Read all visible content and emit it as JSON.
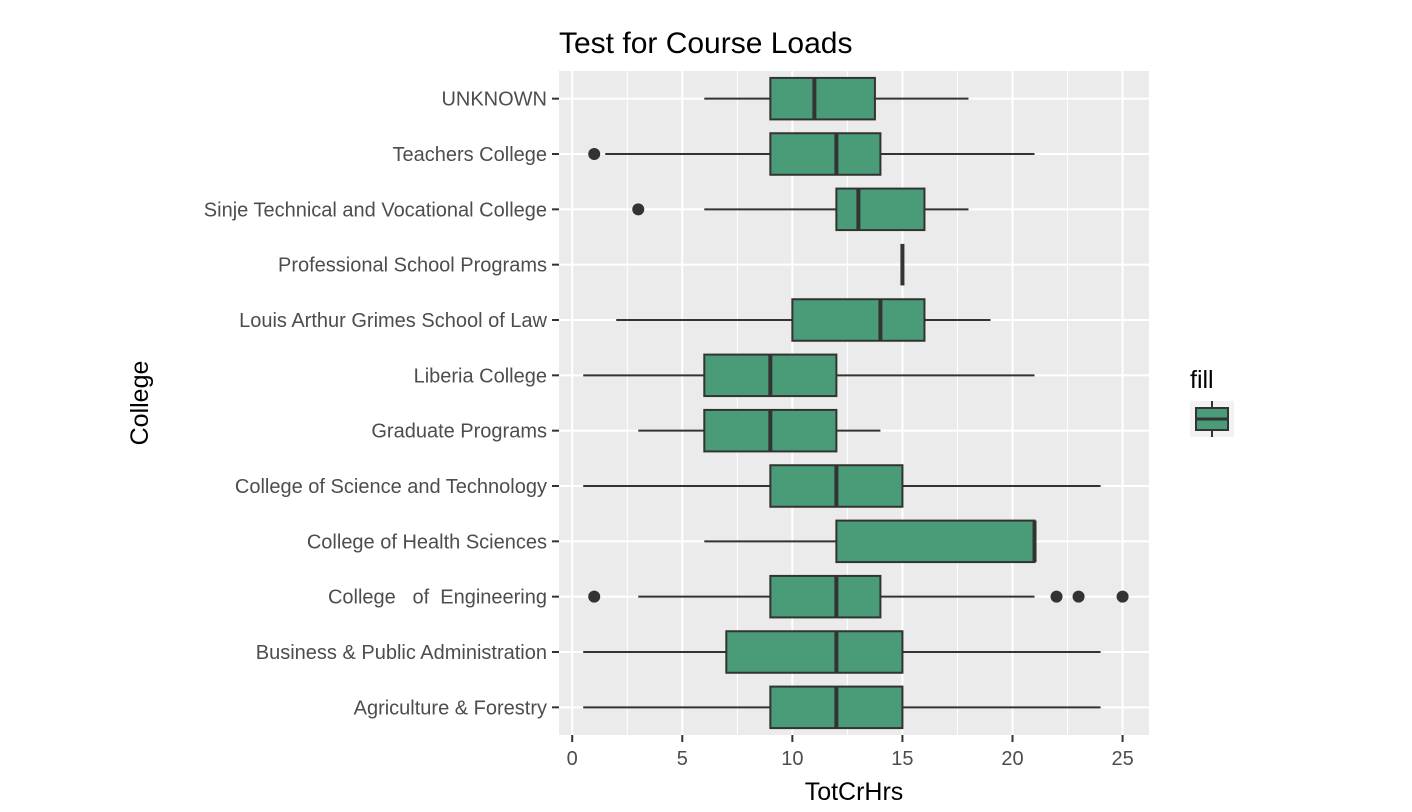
{
  "chart_data": {
    "type": "boxplot",
    "orientation": "horizontal",
    "title": "Test for Course Loads",
    "xlabel": "TotCrHrs",
    "ylabel": "College",
    "xlim": [
      -0.6,
      26.2
    ],
    "x_ticks": [
      0,
      5,
      10,
      15,
      20,
      25
    ],
    "grid": true,
    "fill_color": "#4a9c79",
    "legend": {
      "title": "fill",
      "position": "right"
    },
    "categories": [
      "UNKNOWN",
      "Teachers College",
      "Sinje Technical and Vocational College",
      "Professional School Programs",
      "Louis Arthur Grimes School of Law",
      "Liberia College",
      "Graduate Programs",
      "College of Science and Technology",
      "College of Health Sciences",
      "College   of  Engineering",
      "Business & Public Administration",
      "Agriculture & Forestry"
    ],
    "boxes": [
      {
        "category": "UNKNOWN",
        "whisker_low": 6,
        "q1": 9,
        "median": 11,
        "q3": 13.75,
        "whisker_high": 18,
        "outliers": []
      },
      {
        "category": "Teachers College",
        "whisker_low": 1.5,
        "q1": 9,
        "median": 12,
        "q3": 14,
        "whisker_high": 21,
        "outliers": [
          1
        ]
      },
      {
        "category": "Sinje Technical and Vocational College",
        "whisker_low": 6,
        "q1": 12,
        "median": 13,
        "q3": 16,
        "whisker_high": 18,
        "outliers": [
          3
        ]
      },
      {
        "category": "Professional School Programs",
        "whisker_low": 15,
        "q1": 15,
        "median": 15,
        "q3": 15,
        "whisker_high": 15,
        "outliers": []
      },
      {
        "category": "Louis Arthur Grimes School of Law",
        "whisker_low": 2,
        "q1": 10,
        "median": 14,
        "q3": 16,
        "whisker_high": 19,
        "outliers": []
      },
      {
        "category": "Liberia College",
        "whisker_low": 0.5,
        "q1": 6,
        "median": 9,
        "q3": 12,
        "whisker_high": 21,
        "outliers": []
      },
      {
        "category": "Graduate Programs",
        "whisker_low": 3,
        "q1": 6,
        "median": 9,
        "q3": 12,
        "whisker_high": 14,
        "outliers": []
      },
      {
        "category": "College of Science and Technology",
        "whisker_low": 0.5,
        "q1": 9,
        "median": 12,
        "q3": 15,
        "whisker_high": 24,
        "outliers": []
      },
      {
        "category": "College of Health Sciences",
        "whisker_low": 6,
        "q1": 12,
        "median": 21,
        "q3": 21,
        "whisker_high": 21,
        "outliers": []
      },
      {
        "category": "College   of  Engineering",
        "whisker_low": 3,
        "q1": 9,
        "median": 12,
        "q3": 14,
        "whisker_high": 21,
        "outliers": [
          1,
          22,
          23,
          25
        ]
      },
      {
        "category": "Business & Public Administration",
        "whisker_low": 0.5,
        "q1": 7,
        "median": 12,
        "q3": 15,
        "whisker_high": 24,
        "outliers": []
      },
      {
        "category": "Agriculture & Forestry",
        "whisker_low": 0.5,
        "q1": 9,
        "median": 12,
        "q3": 15,
        "whisker_high": 24,
        "outliers": []
      }
    ]
  }
}
